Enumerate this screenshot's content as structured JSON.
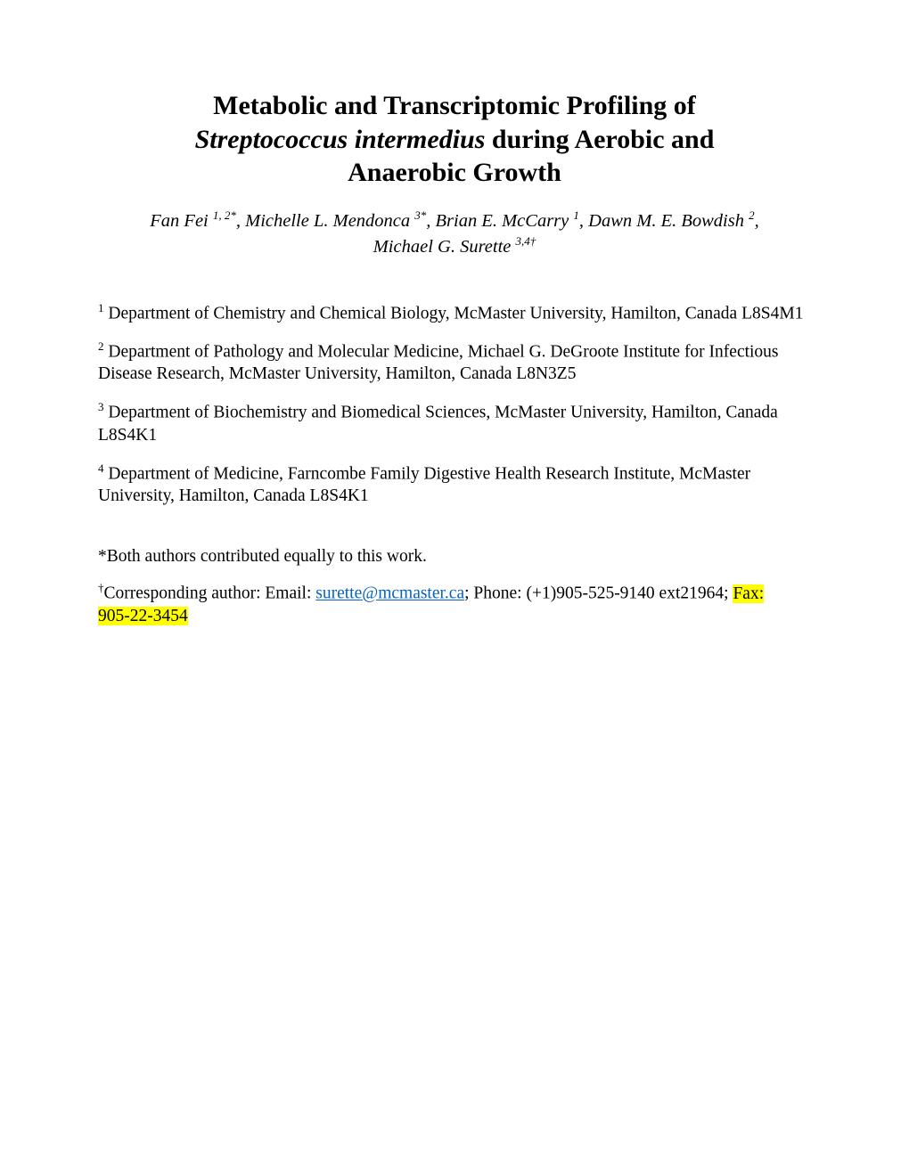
{
  "title": {
    "line1": "Metabolic and Transcriptomic Profiling of",
    "species_italic": "Streptococcus intermedius",
    "line2_rest": " during Aerobic and",
    "line3": "Anaerobic Growth"
  },
  "authors": {
    "a1_name": "Fan Fei ",
    "a1_sup": "1, 2*",
    "sep1": ", ",
    "a2_name": "Michelle L. Mendonca ",
    "a2_sup": "3*",
    "sep2": ", ",
    "a3_name": "Brian E. McCarry ",
    "a3_sup": "1",
    "sep3": ", ",
    "a4_name": "Dawn M. E. Bowdish ",
    "a4_sup": "2",
    "sep4": ",",
    "a5_name": "Michael G. Surette ",
    "a5_sup": "3,4†"
  },
  "affiliations": {
    "a1_sup": "1",
    "a1_text": " Department of Chemistry and Chemical Biology, McMaster University, Hamilton, Canada L8S4M1",
    "a2_sup": "2",
    "a2_text": " Department of Pathology and Molecular Medicine, Michael G. DeGroote Institute for Infectious Disease Research, McMaster University, Hamilton, Canada L8N3Z5",
    "a3_sup": "3",
    "a3_text": " Department of Biochemistry and Biomedical Sciences, McMaster University, Hamilton, Canada L8S4K1",
    "a4_sup": "4",
    "a4_text": " Department of Medicine, Farncombe Family Digestive Health Research Institute, McMaster University, Hamilton, Canada L8S4K1"
  },
  "equal_note": {
    "star": "*",
    "text": "Both authors contributed equally to this work."
  },
  "corresponding": {
    "dagger": "†",
    "prefix": "Corresponding author: Email: ",
    "email": "surette@mcmaster.ca",
    "mid": "; Phone: (+1)905-525-9140 ext21964; ",
    "fax_label": "Fax:",
    "fax_number": "905-22-3454"
  },
  "colors": {
    "link": "#0563c1",
    "highlight": "#ffff00",
    "text": "#000000",
    "background": "#ffffff"
  }
}
